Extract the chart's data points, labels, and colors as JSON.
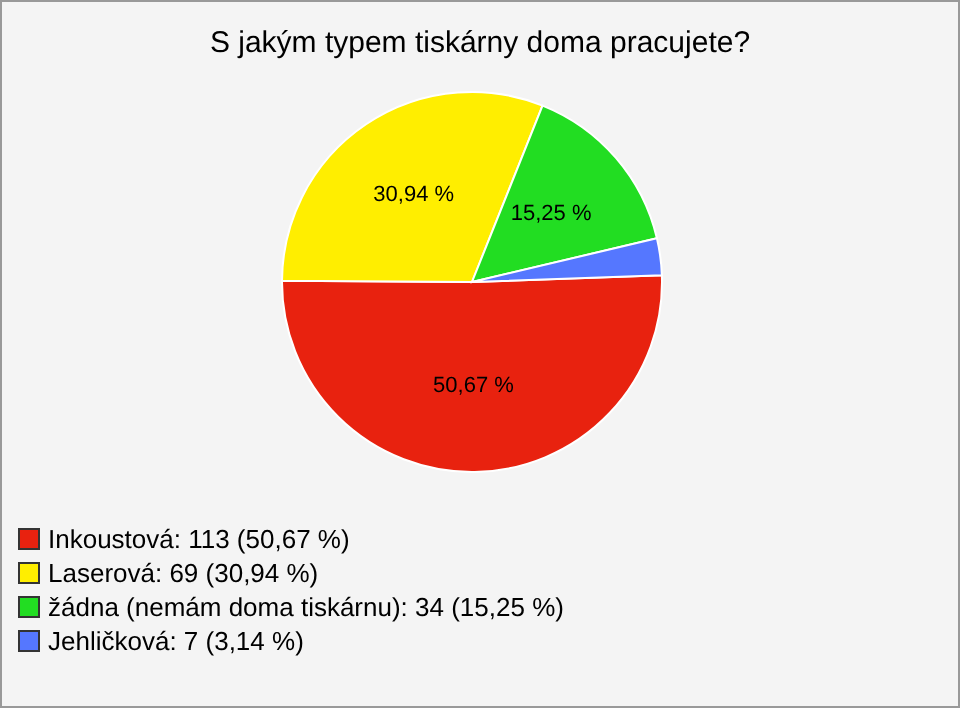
{
  "chart_data": {
    "type": "pie",
    "title": "S jakým typem tiskárny doma pracujete?",
    "categories": [
      "Inkoustová: 113 (50,67 %)",
      "Laserová: 69 (30,94 %)",
      "žádna (nemám doma tiskárnu): 34 (15,25 %)",
      "Jehličková: 7 (3,14 %)"
    ],
    "values": [
      50.67,
      30.94,
      15.25,
      3.14
    ],
    "colors": [
      "#e8220f",
      "#ffee00",
      "#22dd22",
      "#5577ff"
    ],
    "value_labels": [
      "50,67 %",
      "30,94 %",
      "15,25 %",
      null
    ],
    "legend": "bottom left"
  }
}
